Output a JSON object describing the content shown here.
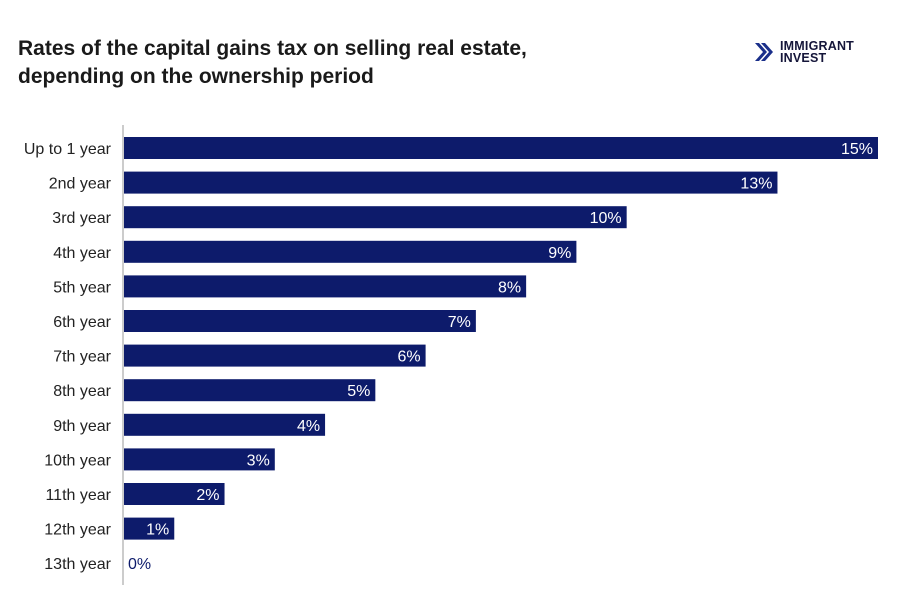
{
  "title_line1": "Rates of the capital gains tax on selling real estate,",
  "title_line2": "depending on the ownership period",
  "logo": {
    "line1": "IMMIGRANT",
    "line2": "INVEST",
    "icon": "double-chevron-right-icon"
  },
  "colors": {
    "bar": "#0d1b6b",
    "label_inside": "#ffffff",
    "label_outside": "#0d1b6b",
    "axis": "#999999"
  },
  "chart_data": {
    "type": "bar",
    "orientation": "horizontal",
    "categories": [
      "Up to 1 year",
      "2nd year",
      "3rd year",
      "4th year",
      "5th year",
      "6th year",
      "7th year",
      "8th year",
      "9th year",
      "10th year",
      "11th year",
      "12th year",
      "13th year"
    ],
    "values": [
      15,
      13,
      10,
      9,
      8,
      7,
      6,
      5,
      4,
      3,
      2,
      1,
      0
    ],
    "data_labels": [
      "15%",
      "13%",
      "10%",
      "9%",
      "8%",
      "7%",
      "6%",
      "5%",
      "4%",
      "3%",
      "2%",
      "1%",
      "0%"
    ],
    "title": "Rates of the capital gains tax on selling real estate, depending on the ownership period",
    "xlabel": "",
    "ylabel": "",
    "xlim": [
      0,
      15
    ],
    "grid": false,
    "legend": "none"
  }
}
